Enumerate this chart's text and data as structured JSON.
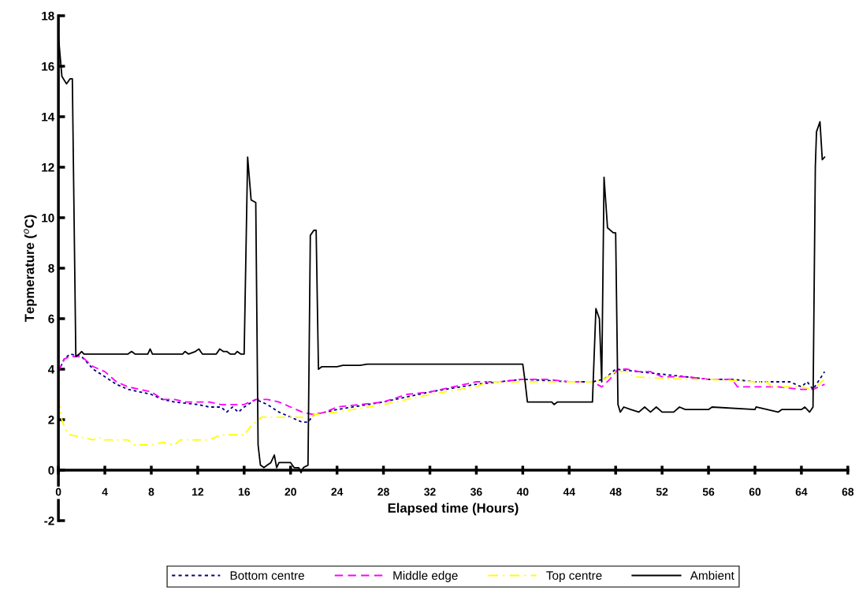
{
  "chart_data": {
    "type": "line",
    "xlabel": "Elapsed time (Hours)",
    "ylabel": "Tepmerature ($^{o}$C)",
    "xlim": [
      0,
      68
    ],
    "xticks": [
      0,
      4,
      8,
      12,
      16,
      20,
      24,
      28,
      32,
      36,
      40,
      44,
      48,
      52,
      56,
      60,
      64,
      68
    ],
    "ylim": [
      -2,
      18
    ],
    "yticks": [
      -2,
      0,
      2,
      4,
      6,
      8,
      10,
      12,
      14,
      16,
      18
    ],
    "grid": false,
    "legend": "bottom",
    "marker": "none",
    "series": [
      {
        "name": "Bottom centre",
        "color": "#000080",
        "line_style": "dotted",
        "x": [
          0,
          0.5,
          1.0,
          2,
          3,
          4,
          5,
          6,
          7,
          8,
          9,
          10,
          12,
          13,
          14,
          14.5,
          15,
          15.5,
          16,
          17,
          18,
          19,
          20,
          21,
          21.5,
          22,
          24,
          28,
          32,
          36,
          40,
          44,
          46,
          47,
          48,
          50,
          52,
          54,
          56,
          58,
          60,
          63,
          64,
          64.5,
          65,
          66
        ],
        "values": [
          3.9,
          4.4,
          4.6,
          4.5,
          4.0,
          3.7,
          3.4,
          3.2,
          3.1,
          3.0,
          2.8,
          2.7,
          2.6,
          2.5,
          2.5,
          2.3,
          2.5,
          2.3,
          2.5,
          2.8,
          2.6,
          2.3,
          2.1,
          1.9,
          1.9,
          2.2,
          2.4,
          2.7,
          3.1,
          3.4,
          3.6,
          3.5,
          3.5,
          3.6,
          4.0,
          3.9,
          3.8,
          3.7,
          3.6,
          3.6,
          3.5,
          3.5,
          3.3,
          3.5,
          3.2,
          3.9
        ]
      },
      {
        "name": "Middle edge",
        "color": "#ff00ff",
        "line_style": "dashed",
        "x": [
          0,
          0.5,
          1.0,
          2.0,
          2.5,
          3,
          4,
          5,
          6,
          7,
          8,
          9,
          10,
          11,
          13,
          14,
          15,
          16,
          17,
          18,
          19,
          20,
          21,
          22,
          23,
          24,
          26,
          28,
          30,
          32,
          34,
          36,
          38,
          40,
          42,
          44,
          46,
          46.8,
          47.5,
          48.2,
          49,
          50,
          51,
          52,
          54,
          56,
          58,
          58.5,
          62,
          64,
          65,
          66
        ],
        "values": [
          3.9,
          4.4,
          4.5,
          4.5,
          4.3,
          4.1,
          3.9,
          3.5,
          3.3,
          3.2,
          3.1,
          2.8,
          2.8,
          2.7,
          2.7,
          2.6,
          2.6,
          2.6,
          2.8,
          2.8,
          2.7,
          2.5,
          2.3,
          2.2,
          2.3,
          2.5,
          2.6,
          2.7,
          3.0,
          3.1,
          3.3,
          3.5,
          3.5,
          3.6,
          3.6,
          3.5,
          3.5,
          3.3,
          3.6,
          4.0,
          4.0,
          3.9,
          3.9,
          3.7,
          3.7,
          3.6,
          3.6,
          3.3,
          3.3,
          3.2,
          3.2,
          3.4
        ]
      },
      {
        "name": "Top centre",
        "color": "#ffff00",
        "line_style": "dashdot",
        "x": [
          0,
          0.3,
          0.6,
          1,
          2,
          3,
          3.5,
          4,
          6,
          6.5,
          8,
          9,
          10,
          10.5,
          13,
          14,
          16,
          16.5,
          17,
          17.5,
          20,
          21,
          21.5,
          22,
          24,
          28,
          32,
          36,
          37,
          40,
          44,
          46,
          47,
          48,
          49,
          49.5,
          54,
          56,
          60,
          61,
          61.5,
          64,
          65,
          66
        ],
        "values": [
          2.8,
          2.0,
          1.6,
          1.4,
          1.3,
          1.2,
          1.3,
          1.2,
          1.2,
          1.0,
          1.0,
          1.1,
          1.0,
          1.2,
          1.2,
          1.4,
          1.4,
          1.7,
          1.9,
          2.1,
          2.1,
          2.1,
          2.0,
          2.2,
          2.3,
          2.6,
          3.0,
          3.3,
          3.5,
          3.5,
          3.5,
          3.5,
          3.6,
          3.9,
          3.9,
          3.7,
          3.6,
          3.6,
          3.5,
          3.5,
          3.3,
          3.3,
          3.2,
          3.6
        ]
      },
      {
        "name": "Ambient",
        "color": "#000000",
        "line_style": "solid",
        "x": [
          0,
          0.3,
          0.7,
          1.0,
          1.2,
          1.5,
          1.8,
          2.0,
          2.2,
          6,
          6.3,
          6.6,
          7.7,
          7.9,
          8.1,
          10.7,
          10.9,
          11.2,
          11.8,
          12.1,
          12.4,
          13.6,
          13.9,
          14.2,
          14.5,
          14.8,
          15.2,
          15.4,
          15.7,
          16.0,
          16.3,
          16.6,
          17.0,
          17.2,
          17.4,
          17.7,
          18.0,
          18.3,
          18.6,
          18.8,
          19.0,
          20.0,
          20.3,
          20.7,
          20.9,
          21.1,
          21.5,
          21.7,
          22.0,
          22.2,
          22.4,
          22.7,
          24,
          24.5,
          26,
          26.6,
          40,
          40.2,
          40.4,
          42.5,
          42.7,
          43,
          46.0,
          46.3,
          46.6,
          46.8,
          47.0,
          47.3,
          47.8,
          48.0,
          48.2,
          48.4,
          48.7,
          49.3,
          50,
          50.5,
          51,
          51.5,
          52,
          53,
          53.5,
          54,
          56,
          56.3,
          60,
          60.1,
          62,
          62.3,
          64.0,
          64.3,
          64.7,
          65.0,
          65.2,
          65.3,
          65.6,
          65.8,
          66.0
        ],
        "values": [
          17.2,
          15.6,
          15.3,
          15.5,
          15.5,
          4.5,
          4.6,
          4.7,
          4.6,
          4.6,
          4.7,
          4.6,
          4.6,
          4.8,
          4.6,
          4.6,
          4.7,
          4.6,
          4.7,
          4.8,
          4.6,
          4.6,
          4.8,
          4.7,
          4.7,
          4.6,
          4.6,
          4.7,
          4.6,
          4.6,
          12.4,
          10.7,
          10.6,
          1.0,
          0.2,
          0.1,
          0.2,
          0.3,
          0.6,
          0.1,
          0.3,
          0.3,
          0.1,
          0.1,
          -0.1,
          0.1,
          0.2,
          9.3,
          9.5,
          9.5,
          4.0,
          4.1,
          4.1,
          4.15,
          4.15,
          4.2,
          4.2,
          3.5,
          2.7,
          2.7,
          2.6,
          2.7,
          2.7,
          6.4,
          6.0,
          3.5,
          11.6,
          9.6,
          9.4,
          9.4,
          2.6,
          2.3,
          2.5,
          2.4,
          2.3,
          2.5,
          2.3,
          2.5,
          2.3,
          2.3,
          2.5,
          2.4,
          2.4,
          2.5,
          2.4,
          2.5,
          2.3,
          2.4,
          2.4,
          2.5,
          2.3,
          2.5,
          12.0,
          13.4,
          13.8,
          12.3,
          12.4
        ]
      }
    ]
  }
}
